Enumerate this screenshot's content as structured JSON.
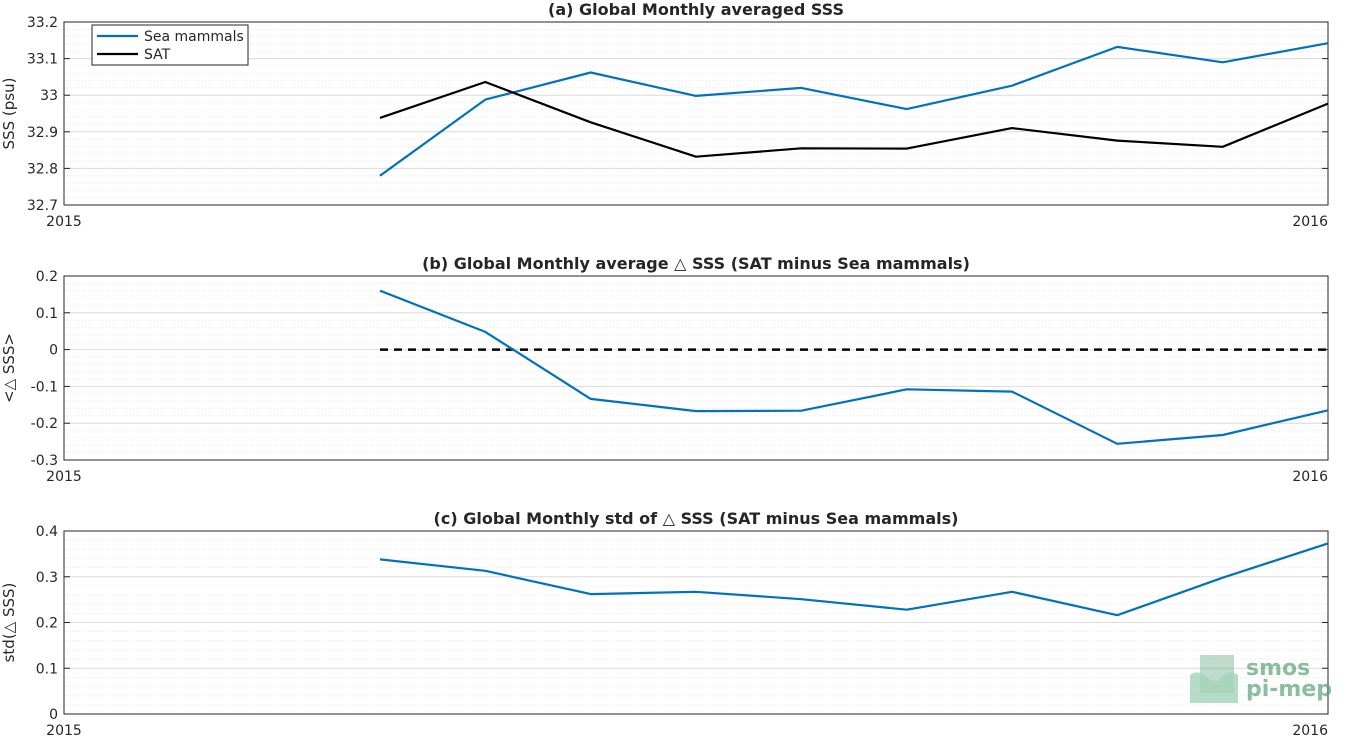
{
  "chart_data": [
    {
      "type": "line",
      "title": "(a) Global Monthly averaged SSS",
      "ylabel": "SSS (psu)",
      "xlabel": "",
      "xlim": [
        "2015",
        "2016"
      ],
      "x_tick_labels": [
        "2015",
        "2016"
      ],
      "ylim": [
        32.7,
        33.2
      ],
      "y_ticks": [
        32.7,
        32.8,
        32.9,
        33,
        33.1,
        33.2
      ],
      "y_tick_labels": [
        "32.7",
        "32.8",
        "32.9",
        "33",
        "33.1",
        "33.2"
      ],
      "grid": true,
      "legend": {
        "placement": "top-left",
        "entries": [
          "Sea mammals",
          "SAT"
        ]
      },
      "x": [
        "2015-04",
        "2015-05",
        "2015-06",
        "2015-07",
        "2015-08",
        "2015-09",
        "2015-10",
        "2015-11",
        "2015-12",
        "2016-01"
      ],
      "series": [
        {
          "name": "Sea mammals",
          "color": "#0072BD",
          "values": [
            32.78,
            32.988,
            33.062,
            32.998,
            33.02,
            32.962,
            33.026,
            33.132,
            33.09,
            33.142
          ]
        },
        {
          "name": "SAT",
          "color": "#000000",
          "values": [
            32.938,
            33.036,
            32.926,
            32.832,
            32.855,
            32.854,
            32.91,
            32.876,
            32.859,
            32.977
          ]
        }
      ]
    },
    {
      "type": "line",
      "title": "(b) Global Monthly average △ SSS (SAT minus Sea mammals)",
      "ylabel": "<△ SSS>",
      "xlabel": "",
      "xlim": [
        "2015",
        "2016"
      ],
      "x_tick_labels": [
        "2015",
        "2016"
      ],
      "ylim": [
        -0.3,
        0.2
      ],
      "y_ticks": [
        -0.3,
        -0.2,
        -0.1,
        0,
        0.1,
        0.2
      ],
      "y_tick_labels": [
        "-0.3",
        "-0.2",
        "-0.1",
        "0",
        "0.1",
        "0.2"
      ],
      "grid": true,
      "reference_line": {
        "y": 0,
        "color": "#000000",
        "style": "dashed",
        "x_from": "2015-04"
      },
      "x": [
        "2015-04",
        "2015-05",
        "2015-06",
        "2015-07",
        "2015-08",
        "2015-09",
        "2015-10",
        "2015-11",
        "2015-12",
        "2016-01"
      ],
      "series": [
        {
          "name": "",
          "color": "#0072BD",
          "values": [
            0.16,
            0.048,
            -0.134,
            -0.167,
            -0.166,
            -0.108,
            -0.114,
            -0.256,
            -0.232,
            -0.165
          ]
        }
      ]
    },
    {
      "type": "line",
      "title": "(c) Global Monthly std of △ SSS (SAT minus Sea mammals)",
      "ylabel": "std(△ SSS)",
      "xlabel": "",
      "xlim": [
        "2015",
        "2016"
      ],
      "x_tick_labels": [
        "2015",
        "2016"
      ],
      "ylim": [
        0,
        0.4
      ],
      "y_ticks": [
        0,
        0.1,
        0.2,
        0.3,
        0.4
      ],
      "y_tick_labels": [
        "0",
        "0.1",
        "0.2",
        "0.3",
        "0.4"
      ],
      "grid": true,
      "x": [
        "2015-04",
        "2015-05",
        "2015-06",
        "2015-07",
        "2015-08",
        "2015-09",
        "2015-10",
        "2015-11",
        "2015-12",
        "2016-01"
      ],
      "series": [
        {
          "name": "",
          "color": "#0072BD",
          "values": [
            0.338,
            0.313,
            0.262,
            0.267,
            0.251,
            0.228,
            0.267,
            0.216,
            0.298,
            0.373
          ]
        }
      ]
    }
  ],
  "logo": {
    "line1": "smos",
    "line2": "pi-mep",
    "color": "#5aa37a"
  }
}
